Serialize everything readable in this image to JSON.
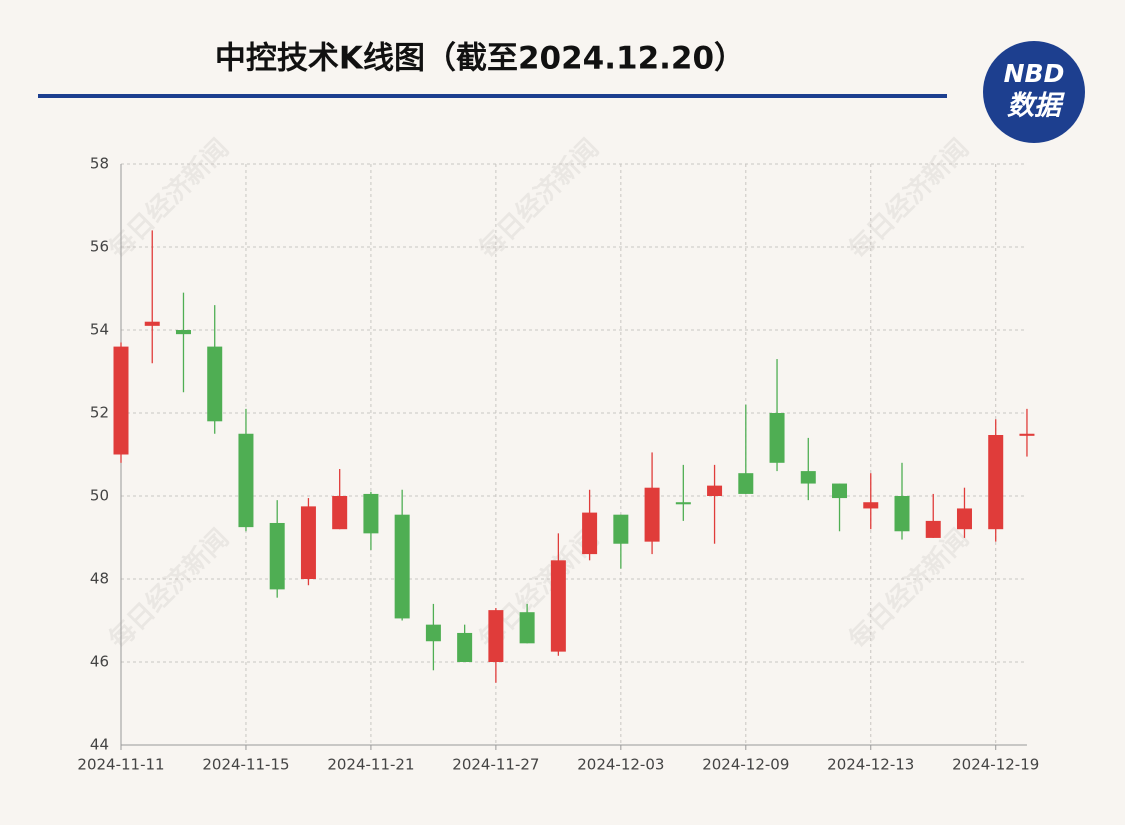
{
  "chart_data": {
    "type": "candlestick",
    "title": "中控技术K线图（截至2024.12.20）",
    "logo": {
      "top": "NBD",
      "bottom": "数据"
    },
    "watermark": "每日经济新闻",
    "categories": [
      "2024-11-11",
      null,
      null,
      null,
      "2024-11-15",
      null,
      null,
      null,
      "2024-11-21",
      null,
      null,
      null,
      "2024-11-27",
      null,
      null,
      null,
      "2024-12-03",
      null,
      null,
      null,
      "2024-12-09",
      null,
      null,
      null,
      "2024-12-13",
      null,
      null,
      null,
      "2024-12-19",
      null
    ],
    "open": [
      51.0,
      54.1,
      54.0,
      53.6,
      51.5,
      49.35,
      48.0,
      49.2,
      50.05,
      49.55,
      46.9,
      46.7,
      46.0,
      47.2,
      46.25,
      48.6,
      49.55,
      48.9,
      49.85,
      50.0,
      50.55,
      52.0,
      50.6,
      50.3,
      49.7,
      50.0,
      48.99,
      49.2,
      49.2,
      51.45
    ],
    "close": [
      53.6,
      54.2,
      53.9,
      51.8,
      49.25,
      47.75,
      49.75,
      50.0,
      49.1,
      47.05,
      46.5,
      46.0,
      47.25,
      46.45,
      48.45,
      49.6,
      48.85,
      50.2,
      49.8,
      50.25,
      50.05,
      50.8,
      50.3,
      49.95,
      49.85,
      49.15,
      49.4,
      49.7,
      51.47,
      51.5
    ],
    "high": [
      53.7,
      56.4,
      54.9,
      54.6,
      52.1,
      49.9,
      49.95,
      50.65,
      50.1,
      50.15,
      47.4,
      46.9,
      47.3,
      47.4,
      49.1,
      50.15,
      49.55,
      51.05,
      50.75,
      50.75,
      52.2,
      53.3,
      51.4,
      50.3,
      50.55,
      50.8,
      50.05,
      50.2,
      51.85,
      52.1
    ],
    "low": [
      50.8,
      53.2,
      52.5,
      51.5,
      49.15,
      47.55,
      47.85,
      49.2,
      48.7,
      47.0,
      45.8,
      46.0,
      45.5,
      46.45,
      46.15,
      48.45,
      48.25,
      48.6,
      49.4,
      48.85,
      50.05,
      50.6,
      49.9,
      49.15,
      49.2,
      48.95,
      48.99,
      48.99,
      48.9,
      50.95
    ],
    "up_color": "#e03c3a",
    "down_color": "#4fae53",
    "ylim": [
      44,
      58
    ],
    "yticks": [
      44,
      46,
      48,
      50,
      52,
      54,
      56,
      58
    ],
    "grid": true
  }
}
